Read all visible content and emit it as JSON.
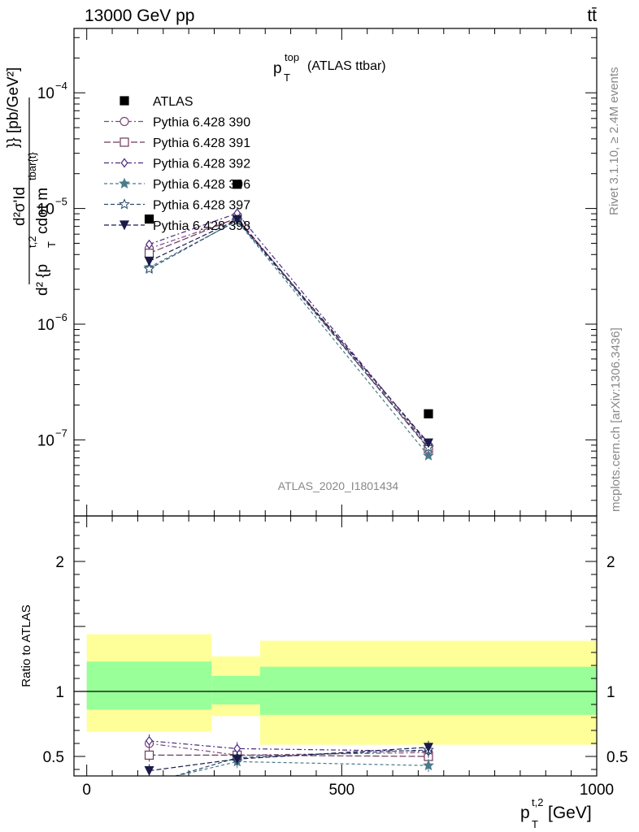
{
  "header": {
    "energy_label": "13000 GeV pp",
    "process_label": "tt̄"
  },
  "side_labels": {
    "rivet": "Rivet 3.1.10, ≥ 2.4M events",
    "source": "mcplots.cern.ch [arXiv:1306.3436]"
  },
  "chart_data": [
    {
      "type": "scatter",
      "title_main": "p",
      "title_sup": "top",
      "title_sub": "T",
      "title_rest": "(ATLAS ttbar)",
      "analysis_label": "ATLAS_2020_I1801434",
      "ylabel_num": "d²σ'Id",
      "ylabel_den_p": "d² {p",
      "ylabel_den_sup": "t,2",
      "ylabel_den_sub": "T",
      "ylabel_den_rest": " cdot m",
      "ylabel_den_sup2": "tbar{t}",
      "ylabel_den_end": "}} [pb/GeV²]",
      "y_scale": "log",
      "ylim": [
        2.2e-08,
        0.00036
      ],
      "xlim": [
        -25,
        1000
      ],
      "y_ticks": [
        {
          "value": 1e-07,
          "base": "10",
          "exp": "−7"
        },
        {
          "value": 1e-06,
          "base": "10",
          "exp": "−6"
        },
        {
          "value": 1e-05,
          "base": "10",
          "exp": "−5"
        },
        {
          "value": 0.0001,
          "base": "10",
          "exp": "−4"
        }
      ],
      "legend_position": "top-left",
      "x": [
        122.5,
        295,
        670
      ],
      "series": [
        {
          "name": "ATLAS",
          "color": "#000000",
          "marker": "square-filled",
          "values": [
            8.1e-06,
            1.62e-05,
            1.68e-07
          ]
        },
        {
          "name": "Pythia 6.428 390",
          "color": "#7a4a7a",
          "marker": "circle-open",
          "values": [
            4.5e-06,
            8.2e-06,
            8.9e-08
          ]
        },
        {
          "name": "Pythia 6.428 391",
          "color": "#6e3a5a",
          "marker": "square-open",
          "values": [
            4.1e-06,
            8.3e-06,
            8.4e-08
          ]
        },
        {
          "name": "Pythia 6.428 392",
          "color": "#4a2a80",
          "marker": "diamond-open",
          "values": [
            4.9e-06,
            9.1e-06,
            9.1e-08
          ]
        },
        {
          "name": "Pythia 6.428 396",
          "color": "#4a7a8a",
          "marker": "star-filled",
          "values": [
            3.1e-06,
            7.8e-06,
            7.3e-08
          ]
        },
        {
          "name": "Pythia 6.428 397",
          "color": "#2a4a6a",
          "marker": "star-open",
          "values": [
            3e-06,
            7.9e-06,
            8.6e-08
          ]
        },
        {
          "name": "Pythia 6.428 398",
          "color": "#1a1a4a",
          "marker": "triangle-down-filled",
          "values": [
            3.5e-06,
            8e-06,
            9.4e-08
          ]
        }
      ]
    },
    {
      "type": "scatter",
      "ylabel": "Ratio to ATLAS",
      "xlabel_p": "p",
      "xlabel_sup": "t,2",
      "xlabel_sub": "T",
      "xlabel_rest": " [GeV]",
      "xlim": [
        -25,
        1000
      ],
      "ylim": [
        0.35,
        2.35
      ],
      "x_ticks": [
        0,
        500,
        1000
      ],
      "x_tick_labels": [
        "0",
        "500",
        "1000"
      ],
      "y_ticks": [
        0.5,
        1,
        2
      ],
      "y_tick_labels": [
        "0.5",
        "1",
        "2"
      ],
      "bands": {
        "bins": [
          [
            0,
            245
          ],
          [
            245,
            340
          ],
          [
            340,
            1000
          ]
        ],
        "inner": [
          [
            0.86,
            1.23
          ],
          [
            0.9,
            1.12
          ],
          [
            0.82,
            1.19
          ]
        ],
        "outer": [
          [
            0.69,
            1.44
          ],
          [
            0.81,
            1.27
          ],
          [
            0.59,
            1.39
          ]
        ],
        "inner_color": "#99ff99",
        "outer_color": "#ffff99"
      },
      "x": [
        122.5,
        295,
        670
      ],
      "series": [
        {
          "name": "Pythia 6.428 390",
          "values": [
            0.6,
            0.51,
            0.53
          ]
        },
        {
          "name": "Pythia 6.428 391",
          "values": [
            0.51,
            0.51,
            0.5
          ]
        },
        {
          "name": "Pythia 6.428 392",
          "values": [
            0.62,
            0.56,
            0.54
          ]
        },
        {
          "name": "Pythia 6.428 396",
          "values": [
            0.3,
            0.46,
            0.43
          ]
        },
        {
          "name": "Pythia 6.428 397",
          "values": [
            0.29,
            0.49,
            0.55
          ]
        },
        {
          "name": "Pythia 6.428 398",
          "values": [
            0.39,
            0.48,
            0.57
          ]
        }
      ]
    }
  ]
}
